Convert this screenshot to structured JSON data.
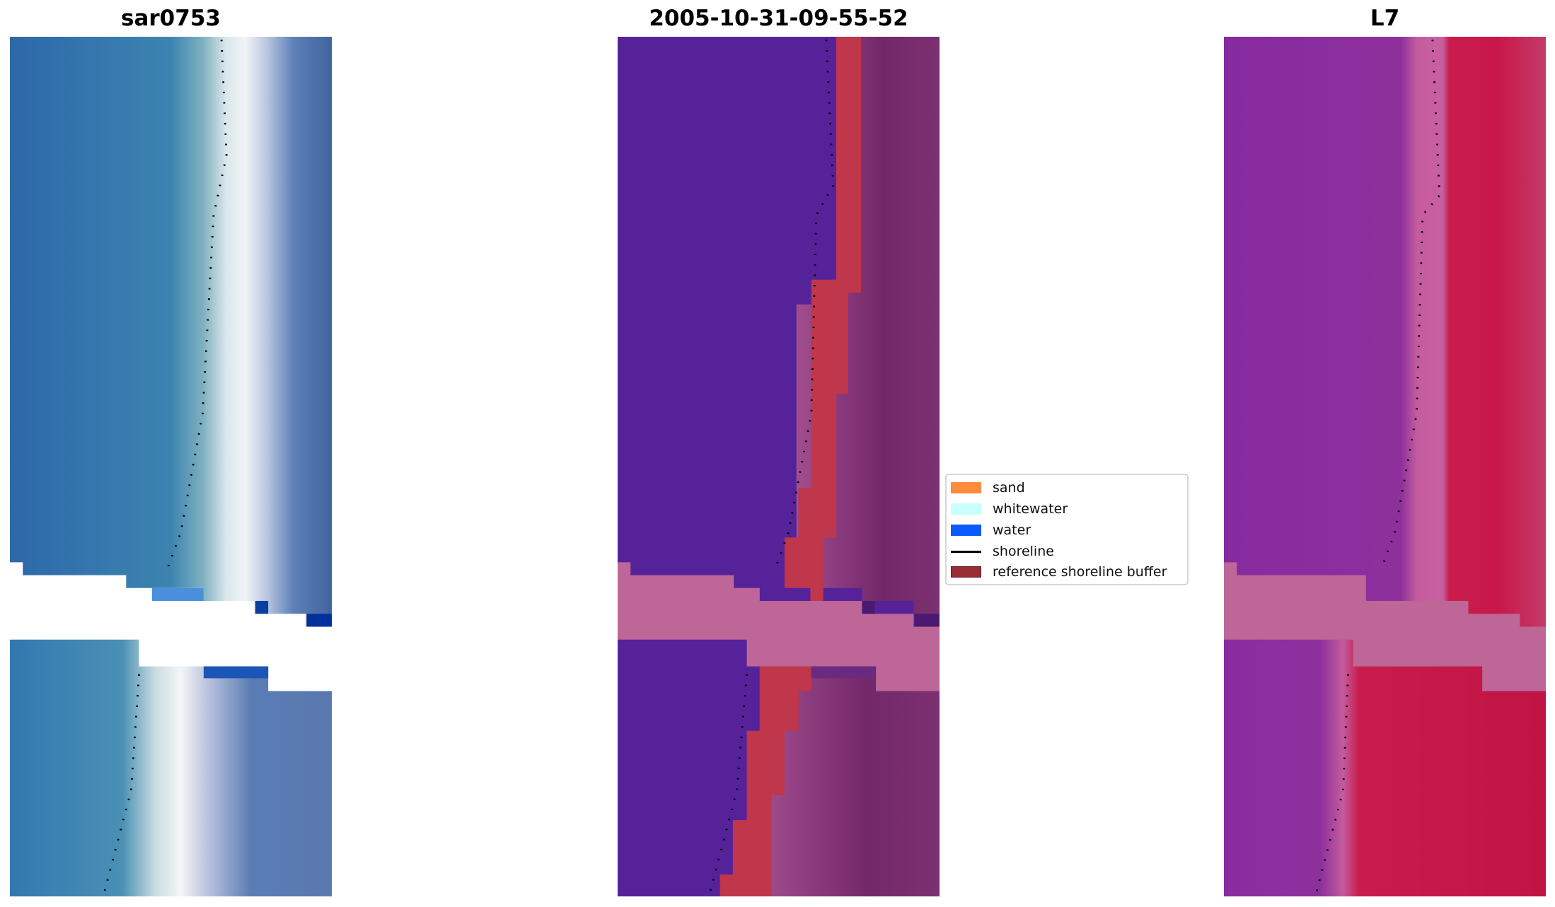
{
  "chart_data": {
    "type": "heatmap",
    "panels": [
      {
        "title": "sar0753",
        "content": "RGB satellite image"
      },
      {
        "title": "2005-10-31-09-55-52",
        "content": "classified image"
      },
      {
        "title": "L7",
        "content": "MNDWI image"
      }
    ],
    "legend": {
      "placement": "center-right",
      "items": [
        {
          "label": "sand",
          "color": "#ff8c3c"
        },
        {
          "label": "whitewater",
          "color": "#c8ffff"
        },
        {
          "label": "water",
          "color": "#0a5aff"
        },
        {
          "label": "shoreline",
          "color": "#000000",
          "kind": "line"
        },
        {
          "label": "reference shoreline buffer",
          "color": "#982e35"
        }
      ]
    }
  }
}
